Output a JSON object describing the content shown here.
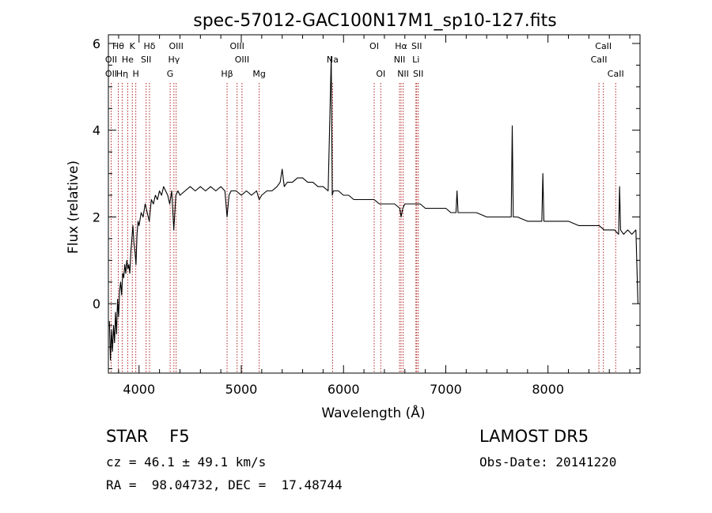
{
  "chart_data": {
    "type": "line",
    "title": "spec-57012-GAC100N17M1_sp10-127.fits",
    "xlabel": "Wavelength (Å)",
    "ylabel": "Flux (relative)",
    "xlim": [
      3700,
      8900
    ],
    "ylim": [
      -1.6,
      6.2
    ],
    "x_ticks": [
      4000,
      5000,
      6000,
      7000,
      8000
    ],
    "y_ticks": [
      0,
      2,
      4,
      6
    ],
    "grid": false,
    "line_color": "#000000",
    "marker_color": "#b22222",
    "spectrum": [
      [
        3710,
        -0.4
      ],
      [
        3720,
        -1.3
      ],
      [
        3730,
        -0.6
      ],
      [
        3740,
        -1.1
      ],
      [
        3750,
        -0.5
      ],
      [
        3760,
        -0.9
      ],
      [
        3770,
        -0.2
      ],
      [
        3780,
        -0.7
      ],
      [
        3790,
        0.1
      ],
      [
        3800,
        -0.3
      ],
      [
        3810,
        0.3
      ],
      [
        3820,
        0.5
      ],
      [
        3830,
        0.2
      ],
      [
        3840,
        0.7
      ],
      [
        3850,
        0.6
      ],
      [
        3860,
        0.9
      ],
      [
        3870,
        0.7
      ],
      [
        3880,
        1.0
      ],
      [
        3890,
        0.8
      ],
      [
        3900,
        0.9
      ],
      [
        3910,
        0.7
      ],
      [
        3920,
        1.2
      ],
      [
        3930,
        1.5
      ],
      [
        3940,
        1.8
      ],
      [
        3950,
        1.4
      ],
      [
        3960,
        1.2
      ],
      [
        3970,
        0.9
      ],
      [
        3980,
        1.6
      ],
      [
        3990,
        1.9
      ],
      [
        4000,
        1.8
      ],
      [
        4020,
        2.1
      ],
      [
        4040,
        2.0
      ],
      [
        4060,
        2.3
      ],
      [
        4080,
        2.1
      ],
      [
        4100,
        1.9
      ],
      [
        4120,
        2.4
      ],
      [
        4140,
        2.3
      ],
      [
        4160,
        2.5
      ],
      [
        4180,
        2.4
      ],
      [
        4200,
        2.6
      ],
      [
        4220,
        2.5
      ],
      [
        4240,
        2.7
      ],
      [
        4260,
        2.6
      ],
      [
        4280,
        2.5
      ],
      [
        4300,
        2.3
      ],
      [
        4320,
        2.6
      ],
      [
        4340,
        1.7
      ],
      [
        4360,
        2.5
      ],
      [
        4380,
        2.6
      ],
      [
        4400,
        2.5
      ],
      [
        4450,
        2.6
      ],
      [
        4500,
        2.7
      ],
      [
        4550,
        2.6
      ],
      [
        4600,
        2.7
      ],
      [
        4650,
        2.6
      ],
      [
        4700,
        2.7
      ],
      [
        4750,
        2.6
      ],
      [
        4800,
        2.7
      ],
      [
        4840,
        2.6
      ],
      [
        4861,
        2.0
      ],
      [
        4880,
        2.5
      ],
      [
        4900,
        2.6
      ],
      [
        4950,
        2.6
      ],
      [
        5000,
        2.5
      ],
      [
        5050,
        2.6
      ],
      [
        5100,
        2.5
      ],
      [
        5150,
        2.6
      ],
      [
        5175,
        2.4
      ],
      [
        5200,
        2.5
      ],
      [
        5250,
        2.6
      ],
      [
        5300,
        2.6
      ],
      [
        5350,
        2.7
      ],
      [
        5380,
        2.8
      ],
      [
        5400,
        3.1
      ],
      [
        5420,
        2.7
      ],
      [
        5450,
        2.8
      ],
      [
        5500,
        2.8
      ],
      [
        5550,
        2.9
      ],
      [
        5600,
        2.9
      ],
      [
        5650,
        2.8
      ],
      [
        5700,
        2.8
      ],
      [
        5750,
        2.7
      ],
      [
        5800,
        2.7
      ],
      [
        5850,
        2.6
      ],
      [
        5880,
        5.7
      ],
      [
        5890,
        2.5
      ],
      [
        5900,
        2.6
      ],
      [
        5950,
        2.6
      ],
      [
        6000,
        2.5
      ],
      [
        6050,
        2.5
      ],
      [
        6100,
        2.4
      ],
      [
        6150,
        2.4
      ],
      [
        6200,
        2.4
      ],
      [
        6250,
        2.4
      ],
      [
        6300,
        2.4
      ],
      [
        6350,
        2.3
      ],
      [
        6400,
        2.3
      ],
      [
        6450,
        2.3
      ],
      [
        6500,
        2.3
      ],
      [
        6550,
        2.2
      ],
      [
        6563,
        2.0
      ],
      [
        6580,
        2.2
      ],
      [
        6600,
        2.3
      ],
      [
        6650,
        2.3
      ],
      [
        6700,
        2.3
      ],
      [
        6750,
        2.3
      ],
      [
        6800,
        2.2
      ],
      [
        6850,
        2.2
      ],
      [
        6900,
        2.2
      ],
      [
        6950,
        2.2
      ],
      [
        7000,
        2.2
      ],
      [
        7050,
        2.1
      ],
      [
        7100,
        2.1
      ],
      [
        7110,
        2.6
      ],
      [
        7120,
        2.1
      ],
      [
        7200,
        2.1
      ],
      [
        7300,
        2.1
      ],
      [
        7400,
        2.0
      ],
      [
        7500,
        2.0
      ],
      [
        7600,
        2.0
      ],
      [
        7640,
        2.0
      ],
      [
        7650,
        4.1
      ],
      [
        7660,
        2.0
      ],
      [
        7700,
        2.0
      ],
      [
        7800,
        1.9
      ],
      [
        7900,
        1.9
      ],
      [
        7940,
        1.9
      ],
      [
        7950,
        3.0
      ],
      [
        7960,
        1.9
      ],
      [
        8000,
        1.9
      ],
      [
        8100,
        1.9
      ],
      [
        8200,
        1.9
      ],
      [
        8300,
        1.8
      ],
      [
        8400,
        1.8
      ],
      [
        8500,
        1.8
      ],
      [
        8550,
        1.7
      ],
      [
        8600,
        1.7
      ],
      [
        8650,
        1.7
      ],
      [
        8690,
        1.6
      ],
      [
        8700,
        2.7
      ],
      [
        8710,
        1.7
      ],
      [
        8740,
        1.6
      ],
      [
        8780,
        1.7
      ],
      [
        8820,
        1.6
      ],
      [
        8860,
        1.7
      ],
      [
        8880,
        0.0
      ]
    ],
    "line_markers": [
      {
        "label": "Hθ",
        "x": 3797,
        "row": 1
      },
      {
        "label": "OII",
        "x": 3727,
        "row": 2
      },
      {
        "label": "OII",
        "x": 3727,
        "row": 3
      },
      {
        "label": "He",
        "x": 3889,
        "row": 2
      },
      {
        "label": "Hη",
        "x": 3835,
        "row": 3
      },
      {
        "label": "K",
        "x": 3934,
        "row": 1
      },
      {
        "label": "H",
        "x": 3968,
        "row": 3
      },
      {
        "label": "Hδ",
        "x": 4102,
        "row": 1
      },
      {
        "label": "SII",
        "x": 4069,
        "row": 2
      },
      {
        "label": "OIII",
        "x": 4363,
        "row": 1
      },
      {
        "label": "Hγ",
        "x": 4341,
        "row": 2
      },
      {
        "label": "G",
        "x": 4304,
        "row": 3
      },
      {
        "label": "OIII",
        "x": 4959,
        "row": 1
      },
      {
        "label": "OIII",
        "x": 5007,
        "row": 2
      },
      {
        "label": "Hβ",
        "x": 4861,
        "row": 3
      },
      {
        "label": "Mg",
        "x": 5175,
        "row": 3
      },
      {
        "label": "Na",
        "x": 5893,
        "row": 2
      },
      {
        "label": "OI",
        "x": 6300,
        "row": 1
      },
      {
        "label": "OI",
        "x": 6364,
        "row": 3
      },
      {
        "label": "Hα",
        "x": 6563,
        "row": 1
      },
      {
        "label": "NII",
        "x": 6548,
        "row": 2
      },
      {
        "label": "NII",
        "x": 6583,
        "row": 3
      },
      {
        "label": "SII",
        "x": 6716,
        "row": 1
      },
      {
        "label": "Li",
        "x": 6708,
        "row": 2
      },
      {
        "label": "SII",
        "x": 6731,
        "row": 3
      },
      {
        "label": "CaII",
        "x": 8542,
        "row": 1
      },
      {
        "label": "CaII",
        "x": 8498,
        "row": 2
      },
      {
        "label": "CaII",
        "x": 8662,
        "row": 3
      }
    ]
  },
  "info": {
    "object_line": "STAR    F5",
    "survey": "LAMOST DR5",
    "cz": "cz = 46.1 ± 49.1 km/s",
    "obs_date": "Obs-Date: 20141220",
    "coords": "RA =  98.04732, DEC =  17.48744"
  }
}
